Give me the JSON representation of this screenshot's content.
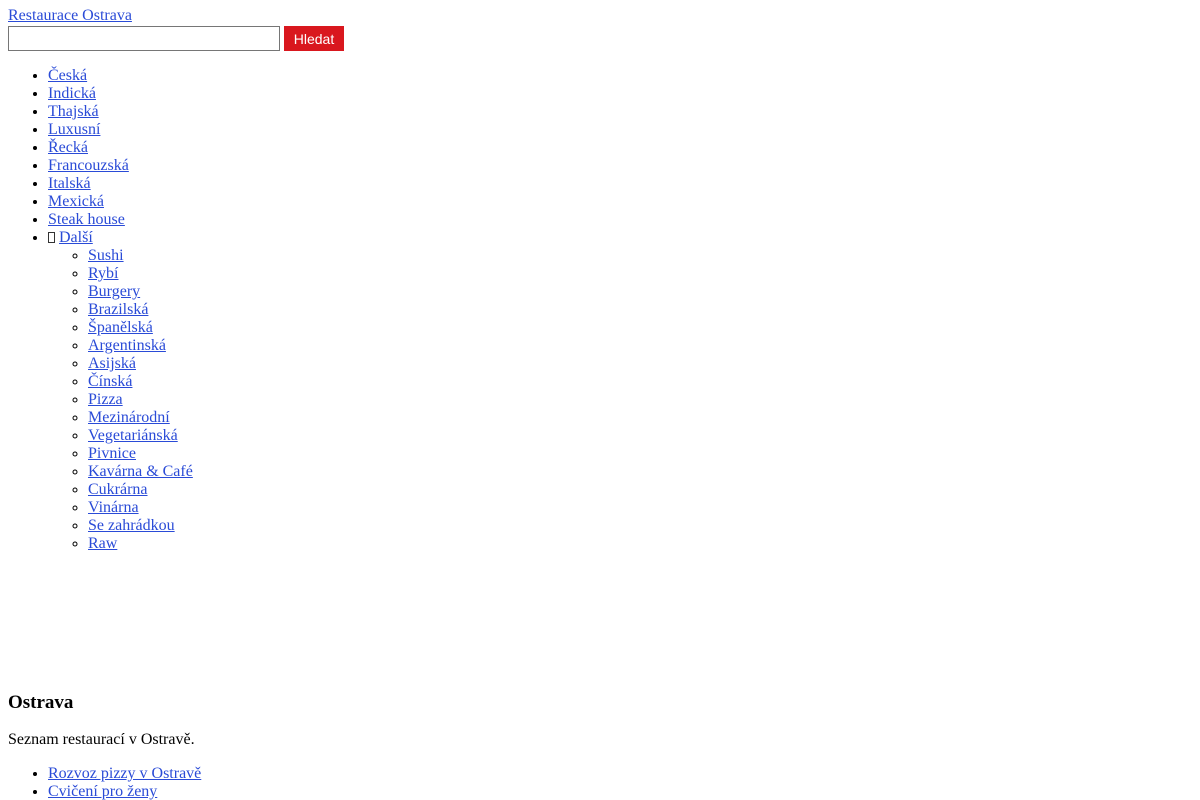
{
  "header": {
    "site_name": "Restaurace Ostrava"
  },
  "search": {
    "button": "Hledat"
  },
  "menu": {
    "items": [
      "Česká",
      "Indická",
      "Thajská",
      "Luxusní",
      "Řecká",
      "Francouzská",
      "Italská",
      "Mexická",
      "Steak house"
    ],
    "more": {
      "label": "Další",
      "items": [
        "Sushi",
        "Rybí",
        "Burgery",
        "Brazilská",
        "Španělská",
        "Argentinská",
        "Asijská",
        "Čínská",
        "Pizza",
        "Mezinárodní",
        "Vegetariánská",
        "Pivnice",
        "Kavárna & Café",
        "Cukrárna",
        "Vinárna",
        "Se zahrádkou",
        "Raw"
      ]
    }
  },
  "content": {
    "title": "Ostrava",
    "text": "Seznam restaurací v Ostravě.",
    "links": [
      "Rozvoz pizzy v Ostravě",
      "Cvičení pro ženy"
    ]
  }
}
